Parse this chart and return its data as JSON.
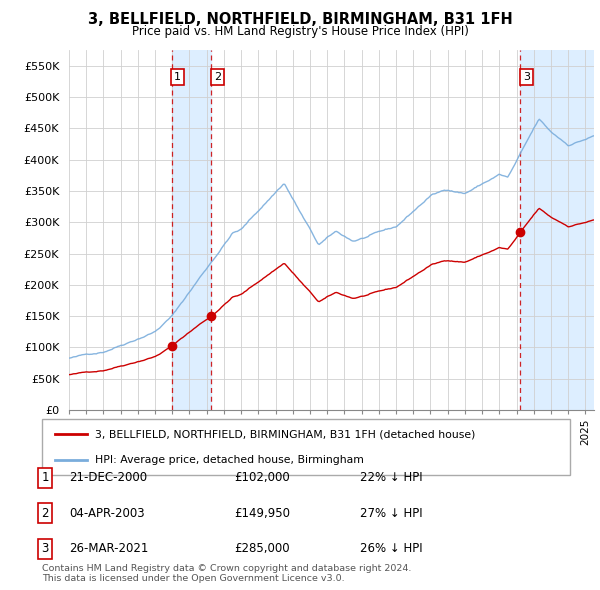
{
  "title": "3, BELLFIELD, NORTHFIELD, BIRMINGHAM, B31 1FH",
  "subtitle": "Price paid vs. HM Land Registry's House Price Index (HPI)",
  "ylim": [
    0,
    575000
  ],
  "yticks": [
    0,
    50000,
    100000,
    150000,
    200000,
    250000,
    300000,
    350000,
    400000,
    450000,
    500000,
    550000
  ],
  "ytick_labels": [
    "£0",
    "£50K",
    "£100K",
    "£150K",
    "£200K",
    "£250K",
    "£300K",
    "£350K",
    "£400K",
    "£450K",
    "£500K",
    "£550K"
  ],
  "legend_line1": "3, BELLFIELD, NORTHFIELD, BIRMINGHAM, B31 1FH (detached house)",
  "legend_line2": "HPI: Average price, detached house, Birmingham",
  "sale1_date": "21-DEC-2000",
  "sale1_price": "£102,000",
  "sale1_hpi": "22% ↓ HPI",
  "sale2_date": "04-APR-2003",
  "sale2_price": "£149,950",
  "sale2_hpi": "27% ↓ HPI",
  "sale3_date": "26-MAR-2021",
  "sale3_price": "£285,000",
  "sale3_hpi": "26% ↓ HPI",
  "footer": "Contains HM Land Registry data © Crown copyright and database right 2024.\nThis data is licensed under the Open Government Licence v3.0.",
  "property_color": "#cc0000",
  "hpi_color": "#7aaddc",
  "vline_color": "#cc0000",
  "shade_color": "#ddeeff"
}
